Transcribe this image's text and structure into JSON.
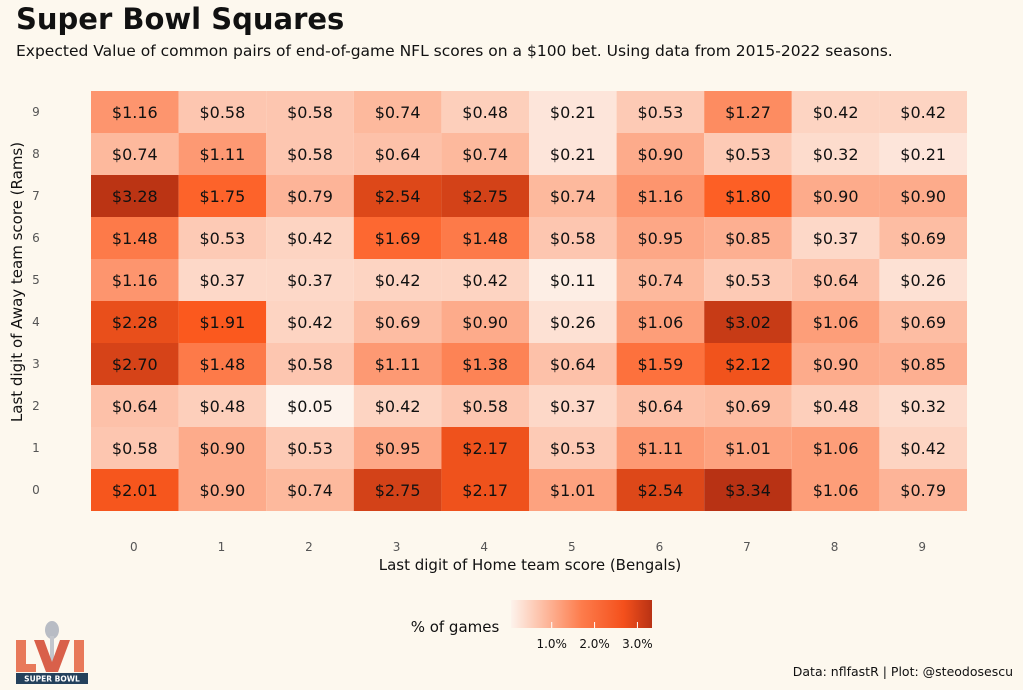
{
  "title": "Super Bowl Squares",
  "subtitle": "Expected Value of common pairs of end-of-game NFL scores on a $100 bet. Using data from 2015-2022 seasons.",
  "caption": "Data: nflfastR | Plot: @steodosescu",
  "logo_text": "SUPER BOWL",
  "chart_data": {
    "type": "heatmap",
    "xlabel": "Last digit of Home team score (Bengals)",
    "ylabel": "Last digit of Away team score (Rams)",
    "x": [
      "0",
      "1",
      "2",
      "3",
      "4",
      "5",
      "6",
      "7",
      "8",
      "9"
    ],
    "y": [
      "9",
      "8",
      "7",
      "6",
      "5",
      "4",
      "3",
      "2",
      "1",
      "0"
    ],
    "values": [
      [
        1.16,
        0.58,
        0.58,
        0.74,
        0.48,
        0.21,
        0.53,
        1.27,
        0.42,
        0.42
      ],
      [
        0.74,
        1.11,
        0.58,
        0.64,
        0.74,
        0.21,
        0.9,
        0.53,
        0.32,
        0.21
      ],
      [
        3.28,
        1.75,
        0.79,
        2.54,
        2.75,
        0.74,
        1.16,
        1.8,
        0.9,
        0.9
      ],
      [
        1.48,
        0.53,
        0.42,
        1.69,
        1.48,
        0.58,
        0.95,
        0.85,
        0.37,
        0.69
      ],
      [
        1.16,
        0.37,
        0.37,
        0.42,
        0.42,
        0.11,
        0.74,
        0.53,
        0.64,
        0.26
      ],
      [
        2.28,
        1.91,
        0.42,
        0.69,
        0.9,
        0.26,
        1.06,
        3.02,
        1.06,
        0.69
      ],
      [
        2.7,
        1.48,
        0.58,
        1.11,
        1.38,
        0.64,
        1.59,
        2.12,
        0.9,
        0.85
      ],
      [
        0.64,
        0.48,
        0.05,
        0.42,
        0.58,
        0.37,
        0.64,
        0.69,
        0.48,
        0.32
      ],
      [
        0.58,
        0.9,
        0.53,
        0.95,
        2.17,
        0.53,
        1.11,
        1.01,
        1.06,
        0.42
      ],
      [
        2.01,
        0.9,
        0.74,
        2.75,
        2.17,
        1.01,
        2.54,
        3.34,
        1.06,
        0.79
      ]
    ],
    "value_prefix": "$",
    "legend": {
      "title": "% of games",
      "ticks": [
        "1.0%",
        "2.0%",
        "3.0%"
      ],
      "tick_values": [
        1.0,
        2.0,
        3.0
      ],
      "range": [
        0.05,
        3.34
      ],
      "position": "bottom"
    },
    "colors": {
      "low": "#fdf3ec",
      "mid": "#fd5a1e",
      "high": "#b83214"
    }
  }
}
